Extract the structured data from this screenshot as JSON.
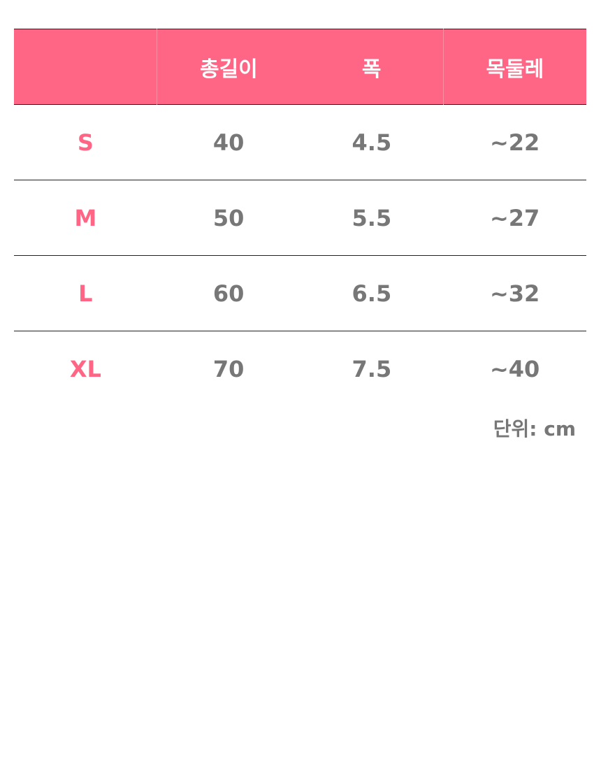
{
  "accent_color": "#ff6685",
  "headers": [
    "",
    "총길이",
    "폭",
    "목둘레"
  ],
  "rows": [
    {
      "size": "S",
      "length": "40",
      "width": "4.5",
      "neck": "~22"
    },
    {
      "size": "M",
      "length": "50",
      "width": "5.5",
      "neck": "~27"
    },
    {
      "size": "L",
      "length": "60",
      "width": "6.5",
      "neck": "~32"
    },
    {
      "size": "XL",
      "length": "70",
      "width": "7.5",
      "neck": "~40"
    }
  ],
  "unit": "단위: cm"
}
